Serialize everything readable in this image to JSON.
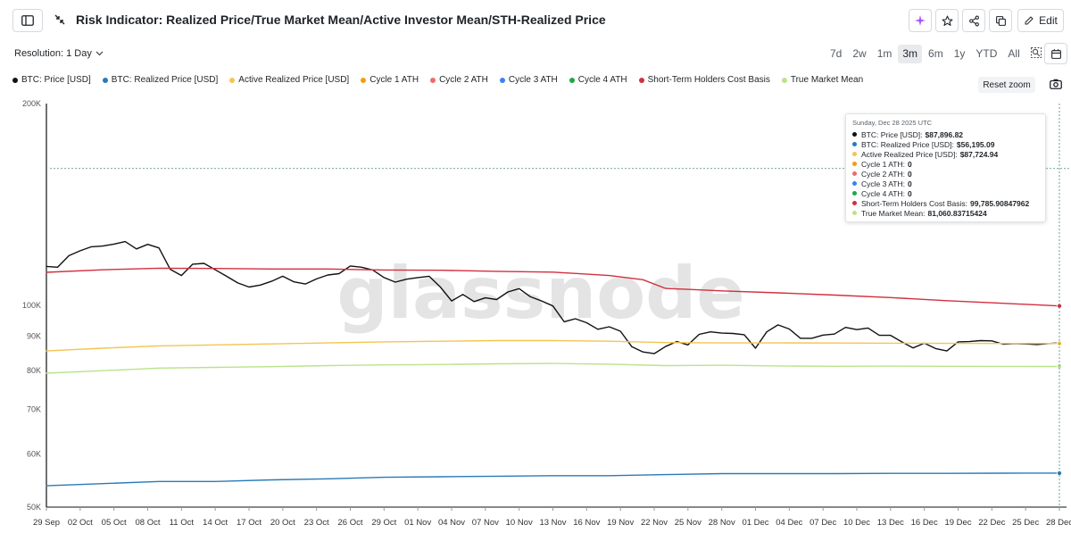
{
  "header": {
    "title": "Risk Indicator: Realized Price/True Market Mean/Active Investor Mean/STH-Realized Price",
    "edit_label": "Edit"
  },
  "controls": {
    "resolution": "Resolution: 1 Day",
    "ranges": [
      "7d",
      "2w",
      "1m",
      "3m",
      "6m",
      "1y",
      "YTD",
      "All"
    ],
    "active_range": "3m",
    "reset_zoom": "Reset zoom"
  },
  "icons": {
    "sidebar": "sidebar-toggle-icon",
    "collapse": "collapse-icon",
    "ai": "sparkle-icon",
    "star": "star-icon",
    "share": "share-icon",
    "copy": "copy-icon",
    "edit": "pencil-icon",
    "range_zoom": "zoom-search-icon",
    "calendar": "calendar-icon",
    "camera": "camera-icon"
  },
  "watermark": "glassnode",
  "tooltip": {
    "date": "Sunday, Dec 28 2025 UTC",
    "rows": [
      {
        "label": "BTC: Price [USD]:",
        "value": "$87,896.82",
        "color": "#111111"
      },
      {
        "label": "BTC: Realized Price [USD]:",
        "value": "$56,195.09",
        "color": "#2a7ab8"
      },
      {
        "label": "Active Realized Price [USD]:",
        "value": "$87,724.94",
        "color": "#f5c451"
      },
      {
        "label": "Cycle 1 ATH:",
        "value": "0",
        "color": "#f39c12"
      },
      {
        "label": "Cycle 2 ATH:",
        "value": "0",
        "color": "#ef6b6b"
      },
      {
        "label": "Cycle 3 ATH:",
        "value": "0",
        "color": "#3b82f6"
      },
      {
        "label": "Cycle 4 ATH:",
        "value": "0",
        "color": "#22a745"
      },
      {
        "label": "Short-Term Holders Cost Basis:",
        "value": "99,785.90847962",
        "color": "#d1303f"
      },
      {
        "label": "True Market Mean:",
        "value": "81,060.83715424",
        "color": "#b9e38a"
      }
    ]
  },
  "chart_data": {
    "type": "line",
    "scale": "log",
    "ylim": [
      50000,
      200000
    ],
    "y_ticks": [
      {
        "value": 200000,
        "label": "200K"
      },
      {
        "value": 100000,
        "label": "100K"
      },
      {
        "value": 90000,
        "label": "90K"
      },
      {
        "value": 80000,
        "label": "80K"
      },
      {
        "value": 70000,
        "label": "70K"
      },
      {
        "value": 60000,
        "label": "60K"
      },
      {
        "value": 50000,
        "label": "50K"
      }
    ],
    "x_start": "2025-09-29",
    "x_end": "2025-12-28",
    "x_ticks": [
      "29 Sep",
      "02 Oct",
      "05 Oct",
      "08 Oct",
      "11 Oct",
      "14 Oct",
      "17 Oct",
      "20 Oct",
      "23 Oct",
      "26 Oct",
      "29 Oct",
      "01 Nov",
      "04 Nov",
      "07 Nov",
      "10 Nov",
      "13 Nov",
      "16 Nov",
      "19 Nov",
      "22 Nov",
      "25 Nov",
      "28 Nov",
      "01 Dec",
      "04 Dec",
      "07 Dec",
      "10 Dec",
      "13 Dec",
      "16 Dec",
      "19 Dec",
      "22 Dec",
      "25 Dec",
      "28 Dec"
    ],
    "grid": false,
    "legend_position": "top-left",
    "crosshair_date": "2025-12-28",
    "crosshair_value": 160000,
    "series": [
      {
        "name": "BTC: Price [USD]",
        "color": "#111111",
        "width": 1.4,
        "points": [
          [
            "2025-09-29",
            114300
          ],
          [
            "2025-09-30",
            114000
          ],
          [
            "2025-10-01",
            118600
          ],
          [
            "2025-10-02",
            120600
          ],
          [
            "2025-10-03",
            122300
          ],
          [
            "2025-10-04",
            122600
          ],
          [
            "2025-10-05",
            123400
          ],
          [
            "2025-10-06",
            124500
          ],
          [
            "2025-10-07",
            121400
          ],
          [
            "2025-10-08",
            123300
          ],
          [
            "2025-10-09",
            121800
          ],
          [
            "2025-10-10",
            113200
          ],
          [
            "2025-10-11",
            110800
          ],
          [
            "2025-10-12",
            115200
          ],
          [
            "2025-10-13",
            115500
          ],
          [
            "2025-10-14",
            113000
          ],
          [
            "2025-10-15",
            110500
          ],
          [
            "2025-10-16",
            108000
          ],
          [
            "2025-10-17",
            106500
          ],
          [
            "2025-10-18",
            107200
          ],
          [
            "2025-10-19",
            108600
          ],
          [
            "2025-10-20",
            110500
          ],
          [
            "2025-10-21",
            108400
          ],
          [
            "2025-10-22",
            107600
          ],
          [
            "2025-10-23",
            109500
          ],
          [
            "2025-10-24",
            111000
          ],
          [
            "2025-10-25",
            111500
          ],
          [
            "2025-10-26",
            114500
          ],
          [
            "2025-10-27",
            114000
          ],
          [
            "2025-10-28",
            112900
          ],
          [
            "2025-10-29",
            110000
          ],
          [
            "2025-10-30",
            108300
          ],
          [
            "2025-10-31",
            109400
          ],
          [
            "2025-11-01",
            110000
          ],
          [
            "2025-11-02",
            110500
          ],
          [
            "2025-11-03",
            106500
          ],
          [
            "2025-11-04",
            101500
          ],
          [
            "2025-11-05",
            103800
          ],
          [
            "2025-11-06",
            101300
          ],
          [
            "2025-11-07",
            102600
          ],
          [
            "2025-11-08",
            102000
          ],
          [
            "2025-11-09",
            104700
          ],
          [
            "2025-11-10",
            105900
          ],
          [
            "2025-11-11",
            103000
          ],
          [
            "2025-11-12",
            101500
          ],
          [
            "2025-11-13",
            99800
          ],
          [
            "2025-11-14",
            94500
          ],
          [
            "2025-11-15",
            95500
          ],
          [
            "2025-11-16",
            94200
          ],
          [
            "2025-11-17",
            92100
          ],
          [
            "2025-11-18",
            92900
          ],
          [
            "2025-11-19",
            91500
          ],
          [
            "2025-11-20",
            86800
          ],
          [
            "2025-11-21",
            85200
          ],
          [
            "2025-11-22",
            84700
          ],
          [
            "2025-11-23",
            86800
          ],
          [
            "2025-11-24",
            88300
          ],
          [
            "2025-11-25",
            87300
          ],
          [
            "2025-11-26",
            90500
          ],
          [
            "2025-11-27",
            91300
          ],
          [
            "2025-11-28",
            90900
          ],
          [
            "2025-11-29",
            90800
          ],
          [
            "2025-11-30",
            90400
          ],
          [
            "2025-12-01",
            86300
          ],
          [
            "2025-12-02",
            91300
          ],
          [
            "2025-12-03",
            93500
          ],
          [
            "2025-12-04",
            92200
          ],
          [
            "2025-12-05",
            89300
          ],
          [
            "2025-12-06",
            89300
          ],
          [
            "2025-12-07",
            90300
          ],
          [
            "2025-12-08",
            90600
          ],
          [
            "2025-12-09",
            92700
          ],
          [
            "2025-12-10",
            92000
          ],
          [
            "2025-12-11",
            92500
          ],
          [
            "2025-12-12",
            90200
          ],
          [
            "2025-12-13",
            90200
          ],
          [
            "2025-12-14",
            88200
          ],
          [
            "2025-12-15",
            86400
          ],
          [
            "2025-12-16",
            87800
          ],
          [
            "2025-12-17",
            86200
          ],
          [
            "2025-12-18",
            85500
          ],
          [
            "2025-12-19",
            88200
          ],
          [
            "2025-12-20",
            88300
          ],
          [
            "2025-12-21",
            88600
          ],
          [
            "2025-12-22",
            88500
          ],
          [
            "2025-12-23",
            87500
          ],
          [
            "2025-12-24",
            87700
          ],
          [
            "2025-12-25",
            87600
          ],
          [
            "2025-12-26",
            87400
          ],
          [
            "2025-12-27",
            87700
          ],
          [
            "2025-12-28",
            87897
          ]
        ]
      },
      {
        "name": "BTC: Realized Price [USD]",
        "color": "#2a7ab8",
        "width": 1.4,
        "points": [
          [
            "2025-09-29",
            53800
          ],
          [
            "2025-10-04",
            54200
          ],
          [
            "2025-10-09",
            54600
          ],
          [
            "2025-10-14",
            54600
          ],
          [
            "2025-10-19",
            54900
          ],
          [
            "2025-10-24",
            55100
          ],
          [
            "2025-10-29",
            55400
          ],
          [
            "2025-11-03",
            55500
          ],
          [
            "2025-11-08",
            55600
          ],
          [
            "2025-11-13",
            55700
          ],
          [
            "2025-11-18",
            55700
          ],
          [
            "2025-11-23",
            55900
          ],
          [
            "2025-11-28",
            56100
          ],
          [
            "2025-12-03",
            56100
          ],
          [
            "2025-12-08",
            56100
          ],
          [
            "2025-12-13",
            56150
          ],
          [
            "2025-12-18",
            56150
          ],
          [
            "2025-12-23",
            56180
          ],
          [
            "2025-12-28",
            56195
          ]
        ]
      },
      {
        "name": "Active Realized Price [USD]",
        "color": "#f5c451",
        "width": 1.4,
        "points": [
          [
            "2025-09-29",
            85500
          ],
          [
            "2025-10-04",
            86300
          ],
          [
            "2025-10-09",
            87000
          ],
          [
            "2025-10-14",
            87300
          ],
          [
            "2025-10-19",
            87600
          ],
          [
            "2025-10-24",
            87900
          ],
          [
            "2025-10-29",
            88200
          ],
          [
            "2025-11-03",
            88400
          ],
          [
            "2025-11-08",
            88600
          ],
          [
            "2025-11-13",
            88600
          ],
          [
            "2025-11-18",
            88400
          ],
          [
            "2025-11-23",
            88000
          ],
          [
            "2025-11-28",
            87900
          ],
          [
            "2025-12-03",
            87900
          ],
          [
            "2025-12-08",
            87850
          ],
          [
            "2025-12-13",
            87800
          ],
          [
            "2025-12-18",
            87750
          ],
          [
            "2025-12-23",
            87730
          ],
          [
            "2025-12-28",
            87725
          ]
        ]
      },
      {
        "name": "Cycle 1 ATH",
        "color": "#f39c12",
        "points": []
      },
      {
        "name": "Cycle 2 ATH",
        "color": "#ef6b6b",
        "points": []
      },
      {
        "name": "Cycle 3 ATH",
        "color": "#3b82f6",
        "points": []
      },
      {
        "name": "Cycle 4 ATH",
        "color": "#22a745",
        "points": []
      },
      {
        "name": "Short-Term Holders Cost Basis",
        "color": "#d1303f",
        "width": 1.4,
        "points": [
          [
            "2025-09-29",
            112000
          ],
          [
            "2025-10-04",
            113000
          ],
          [
            "2025-10-09",
            113600
          ],
          [
            "2025-10-14",
            113500
          ],
          [
            "2025-10-19",
            113300
          ],
          [
            "2025-10-24",
            113300
          ],
          [
            "2025-10-29",
            112900
          ],
          [
            "2025-11-03",
            112800
          ],
          [
            "2025-11-08",
            112400
          ],
          [
            "2025-11-13",
            112100
          ],
          [
            "2025-11-18",
            110800
          ],
          [
            "2025-11-21",
            109200
          ],
          [
            "2025-11-23",
            106000
          ],
          [
            "2025-11-28",
            105100
          ],
          [
            "2025-12-03",
            104400
          ],
          [
            "2025-12-08",
            103600
          ],
          [
            "2025-12-13",
            102700
          ],
          [
            "2025-12-18",
            101600
          ],
          [
            "2025-12-23",
            100700
          ],
          [
            "2025-12-28",
            99786
          ]
        ]
      },
      {
        "name": "True Market Mean",
        "color": "#b9e38a",
        "width": 1.4,
        "points": [
          [
            "2025-09-29",
            79200
          ],
          [
            "2025-10-04",
            79900
          ],
          [
            "2025-10-09",
            80600
          ],
          [
            "2025-10-14",
            80800
          ],
          [
            "2025-10-19",
            81000
          ],
          [
            "2025-10-24",
            81300
          ],
          [
            "2025-10-29",
            81500
          ],
          [
            "2025-11-03",
            81600
          ],
          [
            "2025-11-08",
            81800
          ],
          [
            "2025-11-13",
            81900
          ],
          [
            "2025-11-18",
            81700
          ],
          [
            "2025-11-23",
            81300
          ],
          [
            "2025-11-28",
            81400
          ],
          [
            "2025-12-03",
            81200
          ],
          [
            "2025-12-08",
            81100
          ],
          [
            "2025-12-13",
            81150
          ],
          [
            "2025-12-18",
            81100
          ],
          [
            "2025-12-23",
            81070
          ],
          [
            "2025-12-28",
            81061
          ]
        ]
      }
    ]
  }
}
